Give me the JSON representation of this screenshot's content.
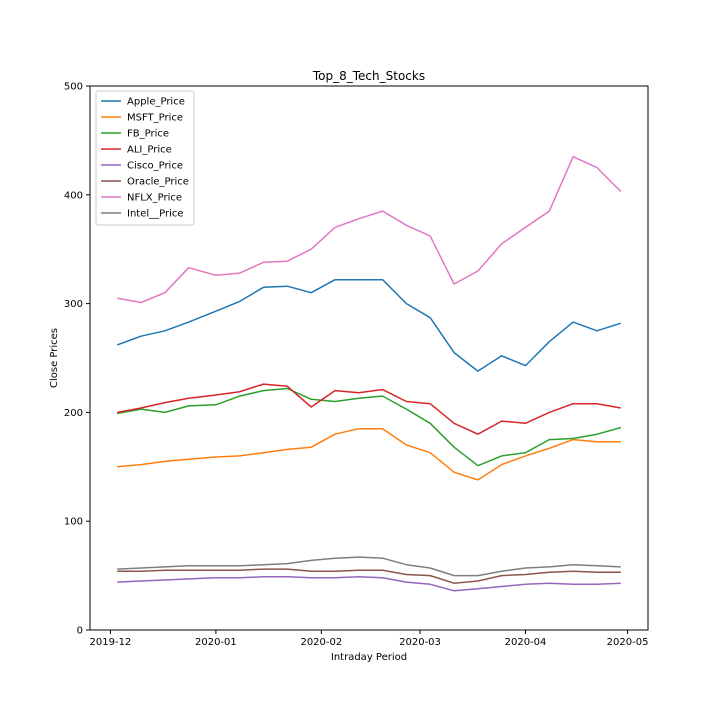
{
  "chart_data": {
    "type": "line",
    "title": "Top_8_Tech_Stocks",
    "xlabel": "Intraday Period",
    "ylabel": "Close Prices",
    "ylim": [
      0,
      500
    ],
    "yticks": [
      "0",
      "100",
      "200",
      "300",
      "400",
      "500"
    ],
    "xticks": [
      {
        "date": "2019-12-01",
        "label": "2019-12"
      },
      {
        "date": "2020-01-01",
        "label": "2020-01"
      },
      {
        "date": "2020-02-01",
        "label": "2020-02"
      },
      {
        "date": "2020-03-01",
        "label": "2020-03"
      },
      {
        "date": "2020-04-01",
        "label": "2020-04"
      },
      {
        "date": "2020-05-01",
        "label": "2020-05"
      }
    ],
    "grid": false,
    "legend_position": "top-left",
    "x": [
      "2019-12-03",
      "2019-12-10",
      "2019-12-17",
      "2019-12-24",
      "2020-01-01",
      "2020-01-08",
      "2020-01-15",
      "2020-01-22",
      "2020-01-29",
      "2020-02-05",
      "2020-02-12",
      "2020-02-19",
      "2020-02-26",
      "2020-03-04",
      "2020-03-11",
      "2020-03-18",
      "2020-03-25",
      "2020-04-01",
      "2020-04-08",
      "2020-04-15",
      "2020-04-22",
      "2020-04-29"
    ],
    "series": [
      {
        "name": "Apple_Price",
        "color": "#1f77b4",
        "values": [
          262,
          270,
          275,
          283,
          293,
          302,
          315,
          316,
          310,
          322,
          322,
          322,
          300,
          287,
          255,
          238,
          252,
          243,
          265,
          283,
          275,
          282
        ]
      },
      {
        "name": "MSFT_Price",
        "color": "#ff7f0e",
        "values": [
          150,
          152,
          155,
          157,
          159,
          160,
          163,
          166,
          168,
          180,
          185,
          185,
          170,
          163,
          145,
          138,
          152,
          160,
          167,
          175,
          173,
          173
        ]
      },
      {
        "name": "FB_Price",
        "color": "#2ca02c",
        "values": [
          199,
          203,
          200,
          206,
          207,
          215,
          220,
          222,
          212,
          210,
          213,
          215,
          203,
          190,
          168,
          151,
          160,
          163,
          175,
          176,
          180,
          186
        ]
      },
      {
        "name": "ALI_Price",
        "color": "#d62728",
        "values": [
          200,
          204,
          209,
          213,
          216,
          219,
          226,
          224,
          205,
          220,
          218,
          221,
          210,
          208,
          190,
          180,
          192,
          190,
          200,
          208,
          208,
          204
        ]
      },
      {
        "name": "Cisco_Price",
        "color": "#9467bd",
        "values": [
          44,
          45,
          46,
          47,
          48,
          48,
          49,
          49,
          48,
          48,
          49,
          48,
          44,
          42,
          36,
          38,
          40,
          42,
          43,
          42,
          42,
          43
        ]
      },
      {
        "name": "Oracle_Price",
        "color": "#8c564b",
        "values": [
          54,
          54,
          55,
          55,
          55,
          55,
          56,
          56,
          54,
          54,
          55,
          55,
          51,
          50,
          43,
          45,
          50,
          51,
          53,
          54,
          53,
          53
        ]
      },
      {
        "name": "NFLX_Price",
        "color": "#e377c2",
        "values": [
          305,
          301,
          310,
          333,
          326,
          328,
          338,
          339,
          350,
          370,
          378,
          385,
          372,
          362,
          318,
          330,
          355,
          370,
          385,
          435,
          425,
          403
        ]
      },
      {
        "name": "Intel__Price",
        "color": "#7f7f7f",
        "values": [
          56,
          57,
          58,
          59,
          59,
          59,
          60,
          61,
          64,
          66,
          67,
          66,
          60,
          57,
          50,
          50,
          54,
          57,
          58,
          60,
          59,
          58
        ]
      }
    ]
  }
}
